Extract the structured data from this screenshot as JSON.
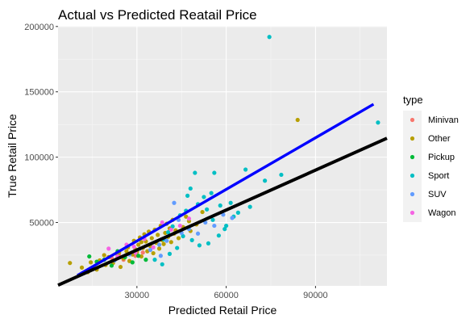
{
  "chart_data": {
    "type": "scatter",
    "title": "Actual vs Predicted Reatail Price",
    "xlabel": "Predicted Retail Price",
    "ylabel": "True Retail Price",
    "xlim": [
      3500,
      114000
    ],
    "ylim": [
      1500,
      200500
    ],
    "x_ticks": [
      30000,
      60000,
      90000
    ],
    "x_tick_labels": [
      "30000",
      "60000",
      "90000"
    ],
    "y_ticks": [
      50000,
      100000,
      150000,
      200000
    ],
    "y_tick_labels": [
      "50000",
      "100000",
      "150000",
      "200000"
    ],
    "grid": true,
    "legend_position": "right",
    "legend_title": "type",
    "series": [
      {
        "name": "Minivan",
        "color": "#F8766D",
        "points": [
          [
            21500,
            23000
          ],
          [
            24000,
            25000
          ],
          [
            27000,
            26000
          ],
          [
            29500,
            24500
          ],
          [
            32000,
            27000
          ],
          [
            25500,
            21500
          ]
        ]
      },
      {
        "name": "Other",
        "color": "#B79F00",
        "points": [
          [
            7500,
            19000
          ],
          [
            11500,
            15500
          ],
          [
            13500,
            12000
          ],
          [
            14500,
            19500
          ],
          [
            16500,
            14000
          ],
          [
            17500,
            21000
          ],
          [
            19500,
            17500
          ],
          [
            20500,
            23500
          ],
          [
            22000,
            19000
          ],
          [
            23500,
            25000
          ],
          [
            24500,
            16000
          ],
          [
            25500,
            22500
          ],
          [
            26500,
            28000
          ],
          [
            27000,
            31000
          ],
          [
            27500,
            20500
          ],
          [
            28500,
            25500
          ],
          [
            29000,
            36000
          ],
          [
            30000,
            27500
          ],
          [
            30500,
            33000
          ],
          [
            31000,
            38500
          ],
          [
            31500,
            24000
          ],
          [
            32000,
            30500
          ],
          [
            32500,
            41000
          ],
          [
            33000,
            35500
          ],
          [
            33500,
            28000
          ],
          [
            34000,
            43000
          ],
          [
            34500,
            32000
          ],
          [
            35000,
            38000
          ],
          [
            35500,
            26500
          ],
          [
            36000,
            44500
          ],
          [
            36500,
            34500
          ],
          [
            37000,
            40500
          ],
          [
            37500,
            30000
          ],
          [
            38000,
            47500
          ],
          [
            38500,
            36500
          ],
          [
            39000,
            33500
          ],
          [
            39500,
            42000
          ],
          [
            40000,
            49000
          ],
          [
            40500,
            39000
          ],
          [
            41000,
            45500
          ],
          [
            41500,
            35000
          ],
          [
            42000,
            52000
          ],
          [
            42500,
            41500
          ],
          [
            43000,
            44000
          ],
          [
            44000,
            38000
          ],
          [
            45500,
            46500
          ],
          [
            46500,
            54500
          ],
          [
            48000,
            43500
          ],
          [
            50000,
            48500
          ],
          [
            52000,
            58000
          ],
          [
            29500,
            29500
          ],
          [
            31500,
            35000
          ],
          [
            24000,
            27000
          ],
          [
            84000,
            128500
          ],
          [
            47500,
            51000
          ],
          [
            19000,
            25000
          ]
        ]
      },
      {
        "name": "Pickup",
        "color": "#00BA38",
        "points": [
          [
            14000,
            24000
          ],
          [
            16500,
            20000
          ],
          [
            19000,
            21500
          ],
          [
            21500,
            17000
          ],
          [
            23500,
            28000
          ],
          [
            26000,
            23500
          ],
          [
            28500,
            19500
          ],
          [
            30500,
            24500
          ],
          [
            33000,
            21500
          ]
        ]
      },
      {
        "name": "Sport",
        "color": "#00BFC4",
        "points": [
          [
            74500,
            192000
          ],
          [
            111000,
            126500
          ],
          [
            48000,
            76000
          ],
          [
            56000,
            88000
          ],
          [
            61500,
            65000
          ],
          [
            66500,
            90500
          ],
          [
            73000,
            82000
          ],
          [
            78500,
            86500
          ],
          [
            58000,
            63000
          ],
          [
            52500,
            69500
          ],
          [
            55000,
            72500
          ],
          [
            46500,
            59000
          ],
          [
            50500,
            64000
          ],
          [
            53500,
            60000
          ],
          [
            49500,
            88000
          ],
          [
            47000,
            70500
          ],
          [
            44500,
            55500
          ],
          [
            42000,
            47000
          ],
          [
            40500,
            42500
          ],
          [
            38500,
            18000
          ],
          [
            41000,
            26000
          ],
          [
            43500,
            30500
          ],
          [
            45500,
            39500
          ],
          [
            48500,
            36500
          ],
          [
            51000,
            32500
          ],
          [
            54000,
            34000
          ],
          [
            57500,
            40000
          ],
          [
            60000,
            47500
          ],
          [
            62500,
            54500
          ],
          [
            64000,
            57500
          ],
          [
            36000,
            21500
          ],
          [
            39000,
            37000
          ],
          [
            55500,
            52000
          ],
          [
            59500,
            45000
          ],
          [
            68000,
            62000
          ]
        ]
      },
      {
        "name": "SUV",
        "color": "#619CFF",
        "points": [
          [
            22500,
            21000
          ],
          [
            27500,
            25500
          ],
          [
            31000,
            30000
          ],
          [
            34500,
            29000
          ],
          [
            37500,
            33000
          ],
          [
            40000,
            36000
          ],
          [
            42500,
            65000
          ],
          [
            45000,
            42000
          ],
          [
            47500,
            45000
          ],
          [
            50500,
            41500
          ],
          [
            53000,
            50000
          ],
          [
            56000,
            47500
          ],
          [
            59000,
            56000
          ],
          [
            62000,
            53500
          ],
          [
            38000,
            24500
          ],
          [
            44000,
            52000
          ]
        ]
      },
      {
        "name": "Wagon",
        "color": "#F564E3",
        "points": [
          [
            20500,
            30000
          ],
          [
            23500,
            24000
          ],
          [
            26500,
            33000
          ],
          [
            29500,
            27000
          ],
          [
            32500,
            37500
          ],
          [
            35500,
            31000
          ],
          [
            38500,
            50000
          ],
          [
            41500,
            44500
          ],
          [
            44500,
            47500
          ],
          [
            47500,
            53000
          ],
          [
            29000,
            31500
          ]
        ]
      }
    ],
    "lines": [
      {
        "kind": "fitted",
        "color": "#0000FF",
        "from": [
          10000,
          9500
        ],
        "to": [
          109500,
          140500
        ]
      },
      {
        "kind": "reference",
        "color": "#000000",
        "from": [
          3500,
          2000
        ],
        "to": [
          114000,
          114500
        ]
      }
    ]
  }
}
